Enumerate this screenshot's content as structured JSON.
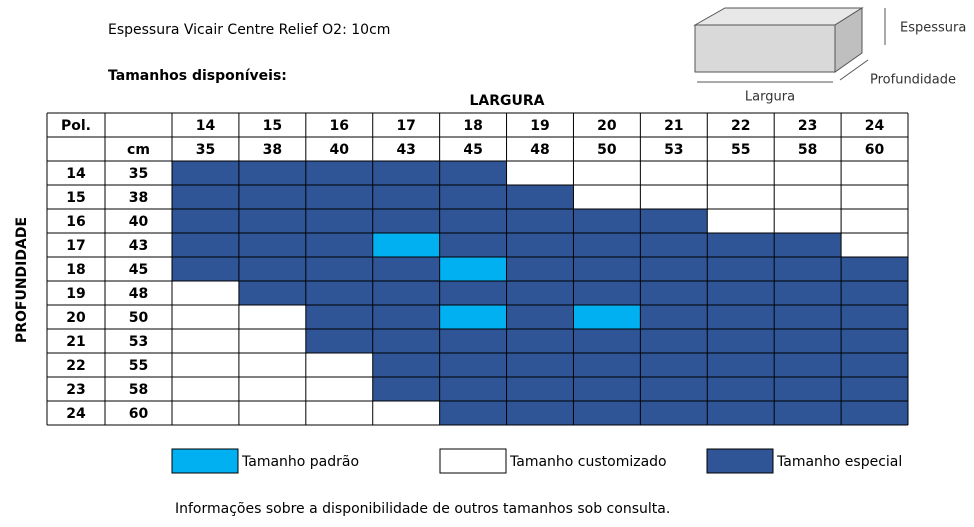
{
  "title": "Espessura Vicair Centre Relief O2: 10cm",
  "subtitle": "Tamanhos disponíveis:",
  "diagram": {
    "thickness": "Espessura",
    "width": "Largura",
    "depth": "Profundidade"
  },
  "table": {
    "x_axis": "LARGURA",
    "y_axis": "PROFUNDIDADE",
    "header_pol": "Pol.",
    "header_cm": "cm",
    "columns": [
      {
        "pol": 14,
        "cm": 35
      },
      {
        "pol": 15,
        "cm": 38
      },
      {
        "pol": 16,
        "cm": 40
      },
      {
        "pol": 17,
        "cm": 43
      },
      {
        "pol": 18,
        "cm": 45
      },
      {
        "pol": 19,
        "cm": 48
      },
      {
        "pol": 20,
        "cm": 50
      },
      {
        "pol": 21,
        "cm": 53
      },
      {
        "pol": 22,
        "cm": 55
      },
      {
        "pol": 23,
        "cm": 58
      },
      {
        "pol": 24,
        "cm": 60
      }
    ],
    "rows": [
      {
        "pol": 14,
        "cm": 35,
        "cells": [
          2,
          2,
          2,
          2,
          2,
          1,
          1,
          1,
          1,
          1,
          1
        ]
      },
      {
        "pol": 15,
        "cm": 38,
        "cells": [
          2,
          2,
          2,
          2,
          2,
          2,
          1,
          1,
          1,
          1,
          1
        ]
      },
      {
        "pol": 16,
        "cm": 40,
        "cells": [
          2,
          2,
          2,
          2,
          2,
          2,
          2,
          2,
          1,
          1,
          1
        ]
      },
      {
        "pol": 17,
        "cm": 43,
        "cells": [
          2,
          2,
          2,
          0,
          2,
          2,
          2,
          2,
          2,
          2,
          1
        ]
      },
      {
        "pol": 18,
        "cm": 45,
        "cells": [
          2,
          2,
          2,
          2,
          0,
          2,
          2,
          2,
          2,
          2,
          2
        ]
      },
      {
        "pol": 19,
        "cm": 48,
        "cells": [
          1,
          2,
          2,
          2,
          2,
          2,
          2,
          2,
          2,
          2,
          2
        ]
      },
      {
        "pol": 20,
        "cm": 50,
        "cells": [
          1,
          1,
          2,
          2,
          0,
          2,
          0,
          2,
          2,
          2,
          2
        ]
      },
      {
        "pol": 21,
        "cm": 53,
        "cells": [
          1,
          1,
          2,
          2,
          2,
          2,
          2,
          2,
          2,
          2,
          2
        ]
      },
      {
        "pol": 22,
        "cm": 55,
        "cells": [
          1,
          1,
          1,
          2,
          2,
          2,
          2,
          2,
          2,
          2,
          2
        ]
      },
      {
        "pol": 23,
        "cm": 58,
        "cells": [
          1,
          1,
          1,
          2,
          2,
          2,
          2,
          2,
          2,
          2,
          2
        ]
      },
      {
        "pol": 24,
        "cm": 60,
        "cells": [
          1,
          1,
          1,
          1,
          2,
          2,
          2,
          2,
          2,
          2,
          2
        ]
      }
    ]
  },
  "legend": [
    {
      "label": "Tamanho padrão",
      "color": "#00b0f0"
    },
    {
      "label": "Tamanho customizado",
      "color": "#ffffff"
    },
    {
      "label": "Tamanho especial",
      "color": "#2f5597"
    }
  ],
  "footnote": "Informações sobre a disponibilidade de outros tamanhos sob consulta."
}
